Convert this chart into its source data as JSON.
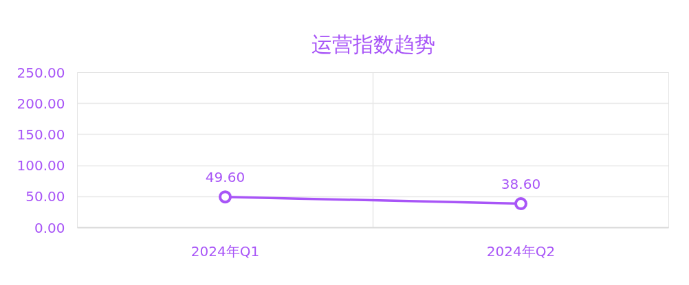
{
  "chart_data": {
    "type": "line",
    "title": "运营指数趋势",
    "categories": [
      "2024年Q1",
      "2024年Q2"
    ],
    "values": [
      49.6,
      38.6
    ],
    "value_labels": [
      "49.60",
      "38.60"
    ],
    "color": "#a855f7",
    "marker": "circle",
    "ylim": [
      0,
      250
    ],
    "yticks": [
      {
        "value": 0,
        "label": "0.00"
      },
      {
        "value": 50,
        "label": "50.00"
      },
      {
        "value": 100,
        "label": "100.00"
      },
      {
        "value": 150,
        "label": "150.00"
      },
      {
        "value": 200,
        "label": "200.00"
      },
      {
        "value": 250,
        "label": "250.00"
      }
    ],
    "grid": true
  }
}
